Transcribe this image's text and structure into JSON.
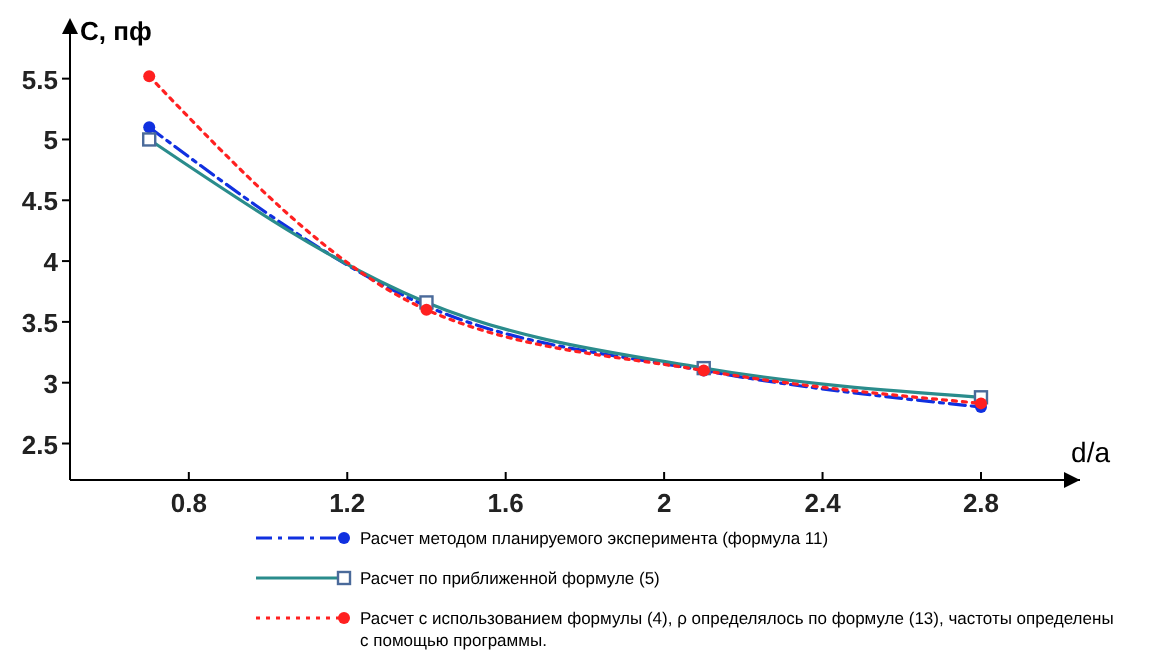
{
  "chart_data": {
    "type": "line",
    "xlabel": "d/a",
    "ylabel": "C, пф",
    "xlim": [
      0.5,
      3.05
    ],
    "ylim": [
      2.2,
      5.9
    ],
    "xticks": [
      0.8,
      1.2,
      1.6,
      2,
      2.4,
      2.8
    ],
    "yticks": [
      2.5,
      3,
      3.5,
      4,
      4.5,
      5,
      5.5
    ],
    "x": [
      0.7,
      1.4,
      2.1,
      2.8
    ],
    "grid": false,
    "legend": "bottom",
    "series": [
      {
        "name": "Расчет методом планируемого эксперимента (формула 11)",
        "color": "#1030e0",
        "values": [
          5.1,
          3.63,
          3.1,
          2.8
        ],
        "marker": "circle",
        "line_style": "dashdot"
      },
      {
        "name": "Расчет по приближенной формуле (5)",
        "color": "#2a8c8c",
        "values": [
          5.0,
          3.66,
          3.12,
          2.88
        ],
        "marker": "square",
        "line_style": "solid"
      },
      {
        "name": "Расчет с использованием формулы (4), ρ определялось по формуле (13), частоты определены с помощью программы.",
        "color": "#ff2020",
        "values": [
          5.52,
          3.6,
          3.1,
          2.83
        ],
        "marker": "circle",
        "line_style": "dotted"
      }
    ]
  }
}
